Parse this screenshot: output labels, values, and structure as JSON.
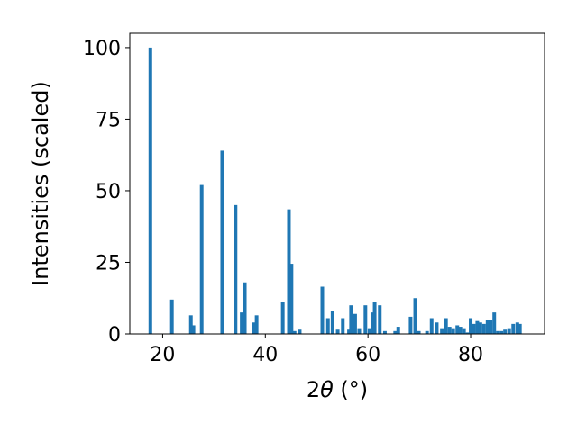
{
  "chart_data": {
    "type": "bar",
    "xlabel_prefix": "2",
    "xlabel_theta": "θ",
    "xlabel_suffix": " (°)",
    "ylabel": "Intensities (scaled)",
    "xlim": [
      13.6,
      94.4
    ],
    "ylim": [
      0,
      105
    ],
    "xticks": [
      20,
      40,
      60,
      80
    ],
    "yticks": [
      0,
      25,
      50,
      75,
      100
    ],
    "grid": false,
    "bar_color": "#1f77b4",
    "bar_width": 0.7,
    "x": [
      17.6,
      21.8,
      25.5,
      26.0,
      27.6,
      31.6,
      34.2,
      35.4,
      36.0,
      37.8,
      38.3,
      43.4,
      44.6,
      45.1,
      45.7,
      46.7,
      51.1,
      52.2,
      53.1,
      54.1,
      55.1,
      56.3,
      56.7,
      57.5,
      58.3,
      59.5,
      60.3,
      60.9,
      61.3,
      62.3,
      63.3,
      65.3,
      65.9,
      68.3,
      69.2,
      69.9,
      71.5,
      72.4,
      73.4,
      74.4,
      75.2,
      75.9,
      76.6,
      77.4,
      78.0,
      78.7,
      79.4,
      80.0,
      80.6,
      81.3,
      81.9,
      82.6,
      83.3,
      83.9,
      84.6,
      85.3,
      86.0,
      86.7,
      87.5,
      88.3,
      89.1,
      89.6
    ],
    "values": [
      100,
      12,
      6.5,
      3,
      52,
      64,
      45,
      7.5,
      18,
      4,
      6.5,
      11,
      43.5,
      24.5,
      1,
      1.5,
      16.5,
      5.5,
      8,
      1.5,
      5.5,
      1.5,
      10,
      7,
      2,
      10,
      2,
      7.5,
      11,
      10,
      1,
      1,
      2.5,
      6,
      12.5,
      1,
      1,
      5.5,
      4,
      2,
      5.5,
      2.5,
      2,
      3,
      2.5,
      2,
      0.5,
      5.5,
      3.5,
      4.5,
      4,
      3.5,
      5,
      5,
      7.5,
      1,
      1,
      1.5,
      2,
      3.5,
      4,
      3.5
    ]
  }
}
